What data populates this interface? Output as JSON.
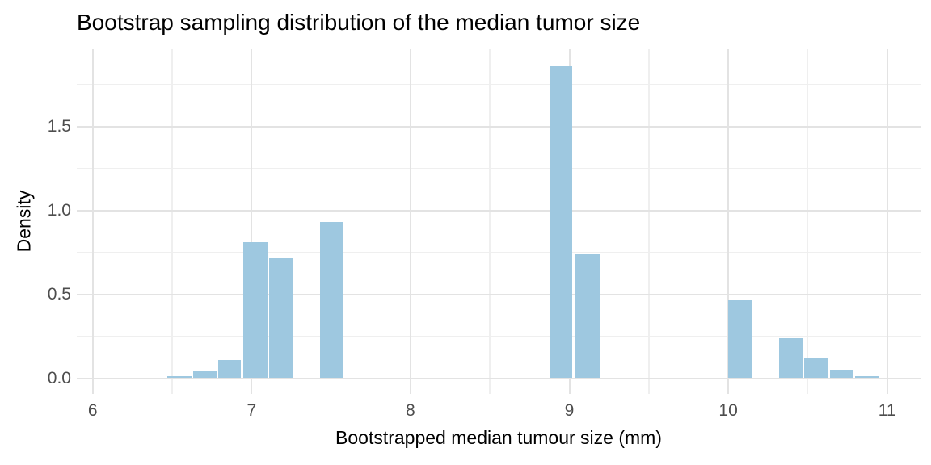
{
  "chart_data": {
    "type": "bar",
    "subtype": "histogram",
    "title": "Bootstrap sampling distribution of the median tumor size",
    "xlabel": "Bootstrapped median tumour size (mm)",
    "ylabel": "Density",
    "legend": false,
    "grid": true,
    "bar_fill": "#9ec8e0",
    "grid_major_color": "#e3e3e3",
    "grid_minor_color": "#efefef",
    "tick_label_color": "#4d4d4d",
    "xlim": [
      5.9,
      11.22
    ],
    "ylim": [
      -0.09,
      1.96
    ],
    "x_ticks": [
      6,
      7,
      8,
      9,
      10,
      11
    ],
    "x_tick_labels": [
      "6",
      "7",
      "8",
      "9",
      "10",
      "11"
    ],
    "x_minor_ticks": [
      6.5,
      7.5,
      8.5,
      9.5,
      10.5
    ],
    "y_ticks": [
      0,
      0.5,
      1.0,
      1.5
    ],
    "y_tick_labels": [
      "0.0",
      "0.5",
      "1.0",
      "1.5"
    ],
    "y_minor_ticks": [
      0.25,
      0.75,
      1.25,
      1.75
    ],
    "bins": [
      {
        "x0": 6.47,
        "x1": 6.62,
        "density": 0.01
      },
      {
        "x0": 6.63,
        "x1": 6.78,
        "density": 0.04
      },
      {
        "x0": 6.79,
        "x1": 6.93,
        "density": 0.11
      },
      {
        "x0": 6.95,
        "x1": 7.1,
        "density": 0.81
      },
      {
        "x0": 7.11,
        "x1": 7.26,
        "density": 0.72
      },
      {
        "x0": 7.43,
        "x1": 7.58,
        "density": 0.93
      },
      {
        "x0": 8.88,
        "x1": 9.02,
        "density": 1.86
      },
      {
        "x0": 9.04,
        "x1": 9.19,
        "density": 0.74
      },
      {
        "x0": 10.0,
        "x1": 10.15,
        "density": 0.47
      },
      {
        "x0": 10.32,
        "x1": 10.47,
        "density": 0.24
      },
      {
        "x0": 10.48,
        "x1": 10.63,
        "density": 0.12
      },
      {
        "x0": 10.64,
        "x1": 10.79,
        "density": 0.05
      },
      {
        "x0": 10.8,
        "x1": 10.95,
        "density": 0.01
      }
    ]
  }
}
